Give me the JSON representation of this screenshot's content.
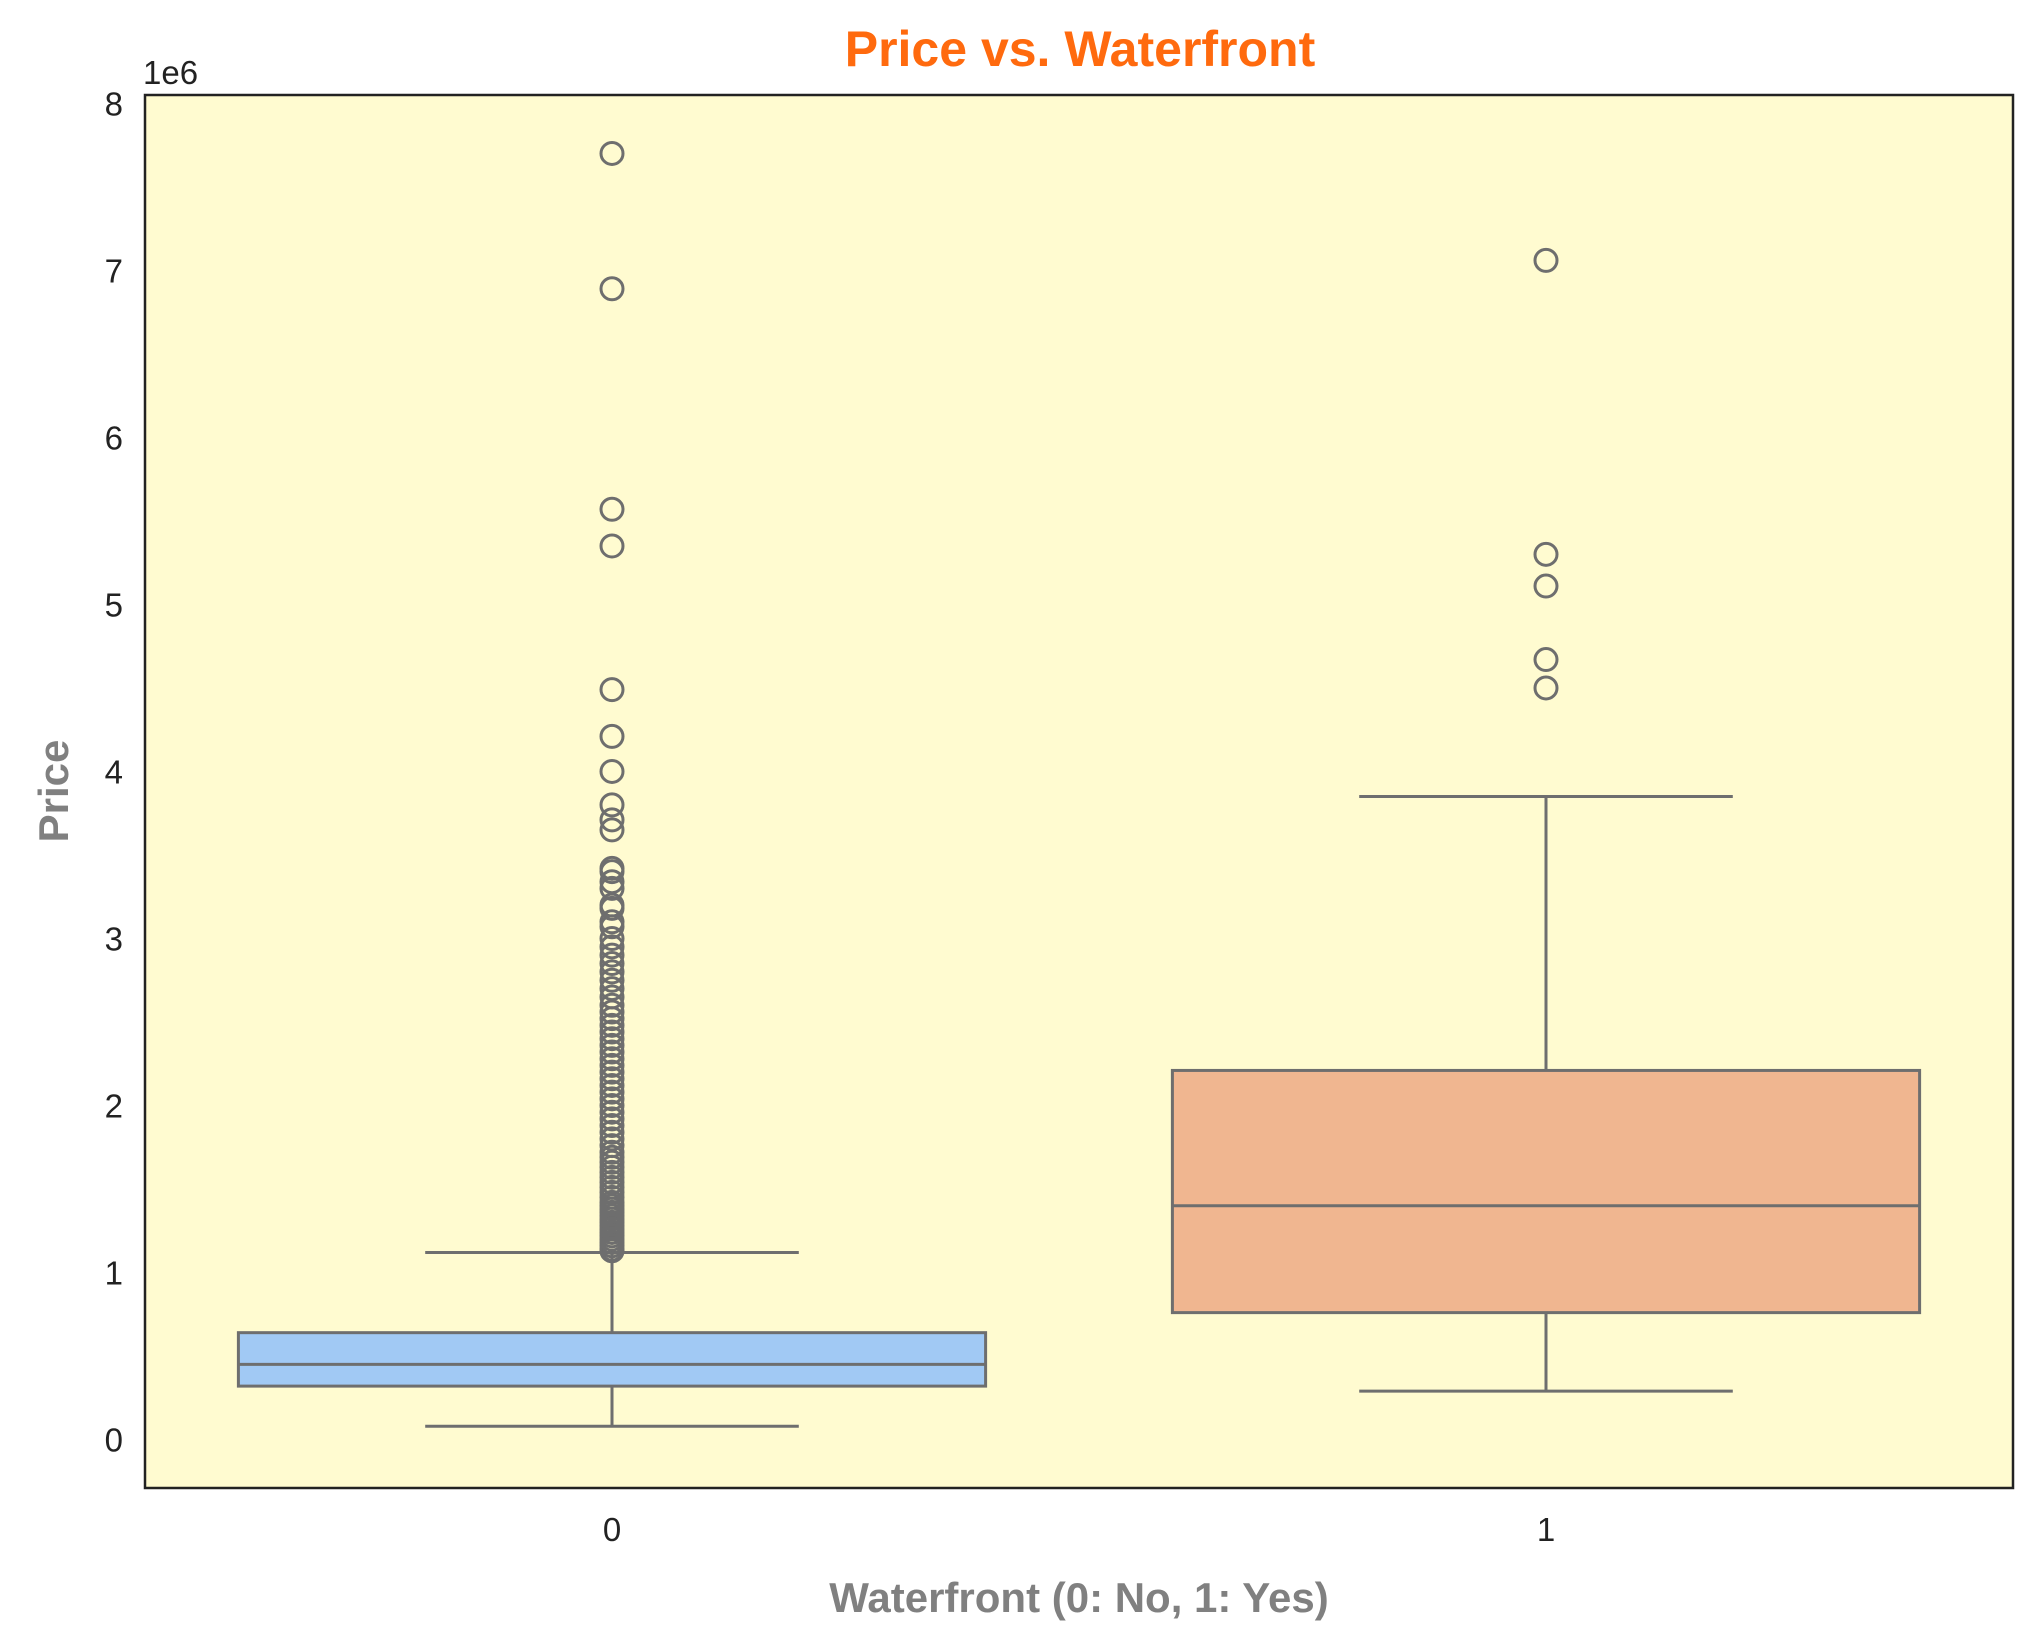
{
  "chart_data": {
    "type": "box",
    "title": "Price vs. Waterfront",
    "xlabel": "Waterfront (0: No, 1: Yes)",
    "ylabel": "Price",
    "y_offset_label": "1e6",
    "y_unit_scale": 1000000,
    "categories": [
      "0",
      "1"
    ],
    "ylim": [
      -290000,
      8050000
    ],
    "yticks": [
      0,
      1000000,
      2000000,
      3000000,
      4000000,
      5000000,
      6000000,
      7000000,
      8000000
    ],
    "ytick_labels": [
      "0",
      "1",
      "2",
      "3",
      "4",
      "5",
      "6",
      "7",
      "8"
    ],
    "grid": false,
    "legend": "none",
    "boxes": [
      {
        "category": "0",
        "color": "#a1c9f4",
        "whisker_low": 80000,
        "q1": 320000,
        "median": 450000,
        "q3": 640000,
        "whisker_high": 1120000,
        "outliers": [
          7700000,
          6890000,
          5570000,
          5350000,
          4490000,
          4210000,
          4000000,
          3800000,
          3710000,
          3650000,
          3420000,
          3400000,
          3340000,
          3300000,
          3200000,
          3180000,
          3100000,
          3070000,
          3000000,
          2950000,
          2900000,
          2850000,
          2800000,
          2750000,
          2700000,
          2650000,
          2600000,
          2560000,
          2520000,
          2480000,
          2440000,
          2400000,
          2360000,
          2320000,
          2280000,
          2240000,
          2200000,
          2160000,
          2120000,
          2080000,
          2040000,
          2000000,
          1960000,
          1920000,
          1880000,
          1840000,
          1800000,
          1760000,
          1720000,
          1690000,
          1660000,
          1630000,
          1600000,
          1570000,
          1540000,
          1510000,
          1480000,
          1450000,
          1420000,
          1400000,
          1380000,
          1360000,
          1340000,
          1320000,
          1300000,
          1280000,
          1260000,
          1240000,
          1220000,
          1200000,
          1180000,
          1160000,
          1140000,
          1130000
        ]
      },
      {
        "category": "1",
        "color": "#f0b690",
        "whisker_low": 290000,
        "q1": 760000,
        "median": 1400000,
        "q3": 2210000,
        "whisker_high": 3850000,
        "outliers": [
          7060000,
          5300000,
          5110000,
          4670000,
          4500000
        ]
      }
    ],
    "colors": {
      "plot_background": "#fffbd0",
      "title": "#ff6a0e",
      "axis_label": "#808080",
      "box_edge": "#6e6e6e",
      "spine": "#222222"
    }
  }
}
